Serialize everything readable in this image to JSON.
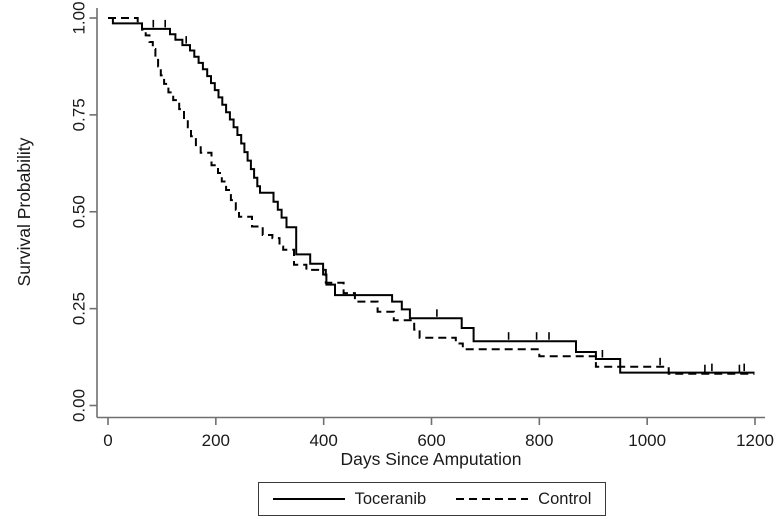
{
  "figure": {
    "background": "#ffffff",
    "axis_color": "#707070",
    "curve_color": "#000000",
    "legend_border_color": "#3a3a3a"
  },
  "chart_data": {
    "type": "line",
    "subtype": "kaplan-meier-step-function",
    "title": "",
    "xlabel": "Days Since Amputation",
    "ylabel": "Survival Probability",
    "xlim": [
      0,
      1240
    ],
    "ylim": [
      0.0,
      1.0
    ],
    "grid": false,
    "legend_position": "bottom-center",
    "x_ticks": [
      {
        "value": 0,
        "label": "0"
      },
      {
        "value": 200,
        "label": "200"
      },
      {
        "value": 400,
        "label": "400"
      },
      {
        "value": 600,
        "label": "600"
      },
      {
        "value": 800,
        "label": "800"
      },
      {
        "value": 1000,
        "label": "1000"
      },
      {
        "value": 1200,
        "label": "1200"
      }
    ],
    "y_ticks": [
      {
        "value": 0.0,
        "label": "0.00"
      },
      {
        "value": 0.25,
        "label": "0.25"
      },
      {
        "value": 0.5,
        "label": "0.50"
      },
      {
        "value": 0.75,
        "label": "0.75"
      },
      {
        "value": 1.0,
        "label": "1.00"
      }
    ],
    "series": [
      {
        "name": "Toceranib",
        "line_style": "solid",
        "end_time": 1199,
        "steps": [
          [
            0,
            1.0
          ],
          [
            9,
            0.986
          ],
          [
            63,
            0.972
          ],
          [
            115,
            0.958
          ],
          [
            125,
            0.944
          ],
          [
            138,
            0.93
          ],
          [
            152,
            0.916
          ],
          [
            160,
            0.9
          ],
          [
            168,
            0.884
          ],
          [
            176,
            0.868
          ],
          [
            184,
            0.85
          ],
          [
            191,
            0.832
          ],
          [
            198,
            0.814
          ],
          [
            205,
            0.795
          ],
          [
            212,
            0.776
          ],
          [
            219,
            0.757
          ],
          [
            226,
            0.738
          ],
          [
            233,
            0.718
          ],
          [
            240,
            0.698
          ],
          [
            247,
            0.676
          ],
          [
            253,
            0.654
          ],
          [
            259,
            0.632
          ],
          [
            265,
            0.61
          ],
          [
            271,
            0.588
          ],
          [
            277,
            0.566
          ],
          [
            282,
            0.549
          ],
          [
            307,
            0.526
          ],
          [
            315,
            0.505
          ],
          [
            322,
            0.485
          ],
          [
            331,
            0.46
          ],
          [
            349,
            0.39
          ],
          [
            375,
            0.366
          ],
          [
            399,
            0.338
          ],
          [
            405,
            0.312
          ],
          [
            421,
            0.285
          ],
          [
            527,
            0.268
          ],
          [
            545,
            0.248
          ],
          [
            560,
            0.225
          ],
          [
            656,
            0.2
          ],
          [
            678,
            0.166
          ],
          [
            868,
            0.138
          ],
          [
            905,
            0.12
          ],
          [
            950,
            0.085
          ]
        ],
        "censor_times": [
          84,
          106,
          145,
          610,
          743,
          795,
          818,
          917,
          1120,
          1180
        ]
      },
      {
        "name": "Control",
        "line_style": "dashed",
        "end_time": 1199,
        "steps": [
          [
            0,
            1.0
          ],
          [
            55,
            0.985
          ],
          [
            63,
            0.97
          ],
          [
            70,
            0.955
          ],
          [
            77,
            0.938
          ],
          [
            83,
            0.92
          ],
          [
            88,
            0.898
          ],
          [
            93,
            0.875
          ],
          [
            98,
            0.852
          ],
          [
            104,
            0.83
          ],
          [
            112,
            0.808
          ],
          [
            121,
            0.788
          ],
          [
            132,
            0.765
          ],
          [
            141,
            0.742
          ],
          [
            148,
            0.718
          ],
          [
            154,
            0.695
          ],
          [
            163,
            0.672
          ],
          [
            172,
            0.652
          ],
          [
            192,
            0.62
          ],
          [
            204,
            0.6
          ],
          [
            211,
            0.578
          ],
          [
            219,
            0.556
          ],
          [
            228,
            0.53
          ],
          [
            237,
            0.505
          ],
          [
            243,
            0.487
          ],
          [
            267,
            0.462
          ],
          [
            287,
            0.44
          ],
          [
            305,
            0.432
          ],
          [
            318,
            0.41
          ],
          [
            325,
            0.402
          ],
          [
            345,
            0.363
          ],
          [
            368,
            0.35
          ],
          [
            404,
            0.317
          ],
          [
            437,
            0.29
          ],
          [
            458,
            0.268
          ],
          [
            500,
            0.242
          ],
          [
            530,
            0.22
          ],
          [
            568,
            0.196
          ],
          [
            578,
            0.175
          ],
          [
            645,
            0.16
          ],
          [
            658,
            0.145
          ],
          [
            800,
            0.127
          ],
          [
            905,
            0.1
          ],
          [
            1040,
            0.082
          ]
        ],
        "censor_times": [
          1024,
          1107,
          1171
        ]
      }
    ]
  }
}
